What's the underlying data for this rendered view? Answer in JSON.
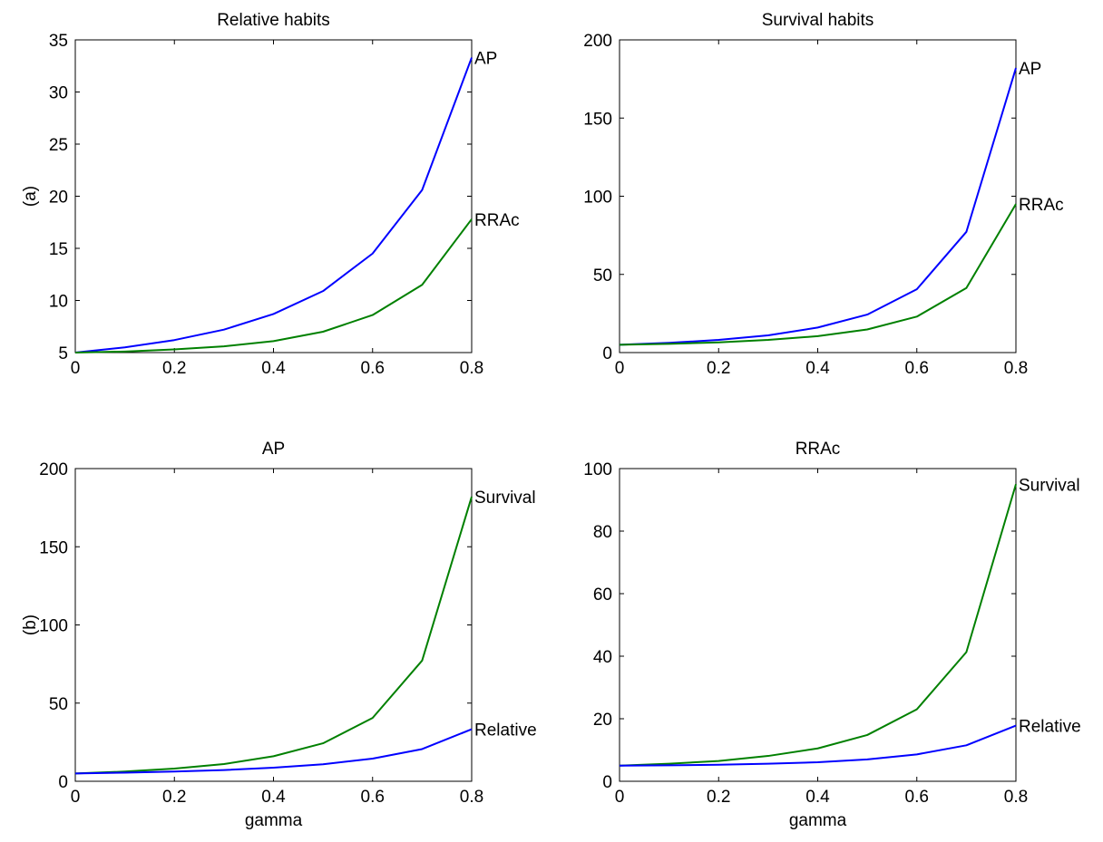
{
  "figure": {
    "background": "#ffffff"
  },
  "colors": {
    "blue": "#0000ff",
    "green": "#008000"
  },
  "chart_data": [
    {
      "type": "line",
      "title": "Relative habits",
      "ylabel": "(a)",
      "xlabel": "",
      "x": [
        0,
        0.1,
        0.2,
        0.3,
        0.4,
        0.5,
        0.6,
        0.7,
        0.8
      ],
      "xlim": [
        0,
        0.8
      ],
      "ylim": [
        5,
        35
      ],
      "xticks": [
        "0",
        "0.2",
        "0.4",
        "0.6",
        "0.8"
      ],
      "yticks": [
        "5",
        "10",
        "15",
        "20",
        "25",
        "30",
        "35"
      ],
      "grid": false,
      "series": [
        {
          "name": "AP",
          "color": "#0000ff",
          "values": [
            5.0,
            5.5,
            6.2,
            7.2,
            8.7,
            10.9,
            14.5,
            20.6,
            33.3
          ]
        },
        {
          "name": "RRAc",
          "color": "#008000",
          "values": [
            5.0,
            5.1,
            5.3,
            5.6,
            6.1,
            7.0,
            8.6,
            11.5,
            17.8
          ]
        }
      ]
    },
    {
      "type": "line",
      "title": "Survival habits",
      "ylabel": "",
      "xlabel": "",
      "x": [
        0,
        0.1,
        0.2,
        0.3,
        0.4,
        0.5,
        0.6,
        0.7,
        0.8
      ],
      "xlim": [
        0,
        0.8
      ],
      "ylim": [
        0,
        200
      ],
      "xticks": [
        "0",
        "0.2",
        "0.4",
        "0.6",
        "0.8"
      ],
      "yticks": [
        "0",
        "50",
        "100",
        "150",
        "200"
      ],
      "grid": false,
      "series": [
        {
          "name": "AP",
          "color": "#0000ff",
          "values": [
            5,
            6.2,
            8.1,
            11.0,
            16.0,
            24.3,
            40.5,
            77.2,
            182
          ]
        },
        {
          "name": "RRAc",
          "color": "#008000",
          "values": [
            5,
            5.6,
            6.5,
            8.1,
            10.5,
            14.8,
            23.0,
            41.3,
            95
          ]
        }
      ]
    },
    {
      "type": "line",
      "title": "AP",
      "ylabel": "(b)",
      "xlabel": "gamma",
      "x": [
        0,
        0.1,
        0.2,
        0.3,
        0.4,
        0.5,
        0.6,
        0.7,
        0.8
      ],
      "xlim": [
        0,
        0.8
      ],
      "ylim": [
        0,
        200
      ],
      "xticks": [
        "0",
        "0.2",
        "0.4",
        "0.6",
        "0.8"
      ],
      "yticks": [
        "0",
        "50",
        "100",
        "150",
        "200"
      ],
      "grid": false,
      "series": [
        {
          "name": "Survival",
          "color": "#008000",
          "values": [
            5,
            6.2,
            8.1,
            11.0,
            16.0,
            24.3,
            40.5,
            77.2,
            182
          ]
        },
        {
          "name": "Relative",
          "color": "#0000ff",
          "values": [
            5.0,
            5.5,
            6.2,
            7.2,
            8.7,
            10.9,
            14.5,
            20.6,
            33.3
          ]
        }
      ]
    },
    {
      "type": "line",
      "title": "RRAc",
      "ylabel": "",
      "xlabel": "gamma",
      "x": [
        0,
        0.1,
        0.2,
        0.3,
        0.4,
        0.5,
        0.6,
        0.7,
        0.8
      ],
      "xlim": [
        0,
        0.8
      ],
      "ylim": [
        0,
        100
      ],
      "xticks": [
        "0",
        "0.2",
        "0.4",
        "0.6",
        "0.8"
      ],
      "yticks": [
        "0",
        "20",
        "40",
        "60",
        "80",
        "100"
      ],
      "grid": false,
      "series": [
        {
          "name": "Survival",
          "color": "#008000",
          "values": [
            5,
            5.6,
            6.5,
            8.1,
            10.5,
            14.8,
            23.0,
            41.3,
            95
          ]
        },
        {
          "name": "Relative",
          "color": "#0000ff",
          "values": [
            5.0,
            5.1,
            5.3,
            5.6,
            6.1,
            7.0,
            8.6,
            11.5,
            17.8
          ]
        }
      ]
    }
  ]
}
